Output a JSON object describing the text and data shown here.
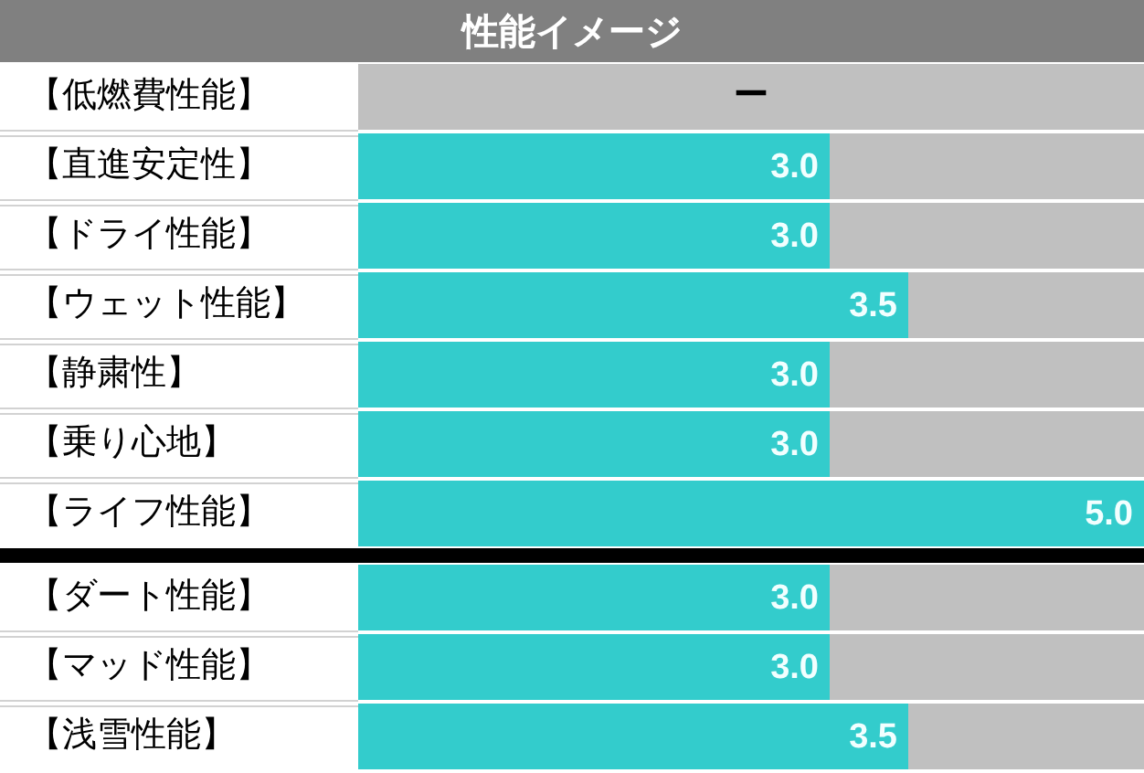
{
  "chart_data": [
    {
      "type": "bar",
      "orientation": "horizontal",
      "title": "性能イメージ",
      "categories": [
        "【低燃費性能】",
        "【直進安定性】",
        "【ドライ性能】",
        "【ウェット性能】",
        "【静粛性】",
        "【乗り心地】",
        "【ライフ性能】"
      ],
      "values": [
        null,
        3.0,
        3.0,
        3.5,
        3.0,
        3.0,
        5.0
      ],
      "color": "#33cccc",
      "value_labels": [
        "ー",
        "3.0",
        "3.0",
        "3.5",
        "3.0",
        "3.0",
        "5.0"
      ],
      "xlim": [
        0,
        5
      ],
      "tick_labels": "y"
    },
    {
      "type": "bar",
      "orientation": "horizontal",
      "categories": [
        "【ダート性能】",
        "【マッド性能】",
        "【浅雪性能】"
      ],
      "values": [
        3.0,
        3.0,
        3.5
      ],
      "color": "#33cccc",
      "value_labels": [
        "3.0",
        "3.0",
        "3.5"
      ],
      "xlim": [
        0,
        5
      ],
      "tick_labels": "y"
    }
  ]
}
